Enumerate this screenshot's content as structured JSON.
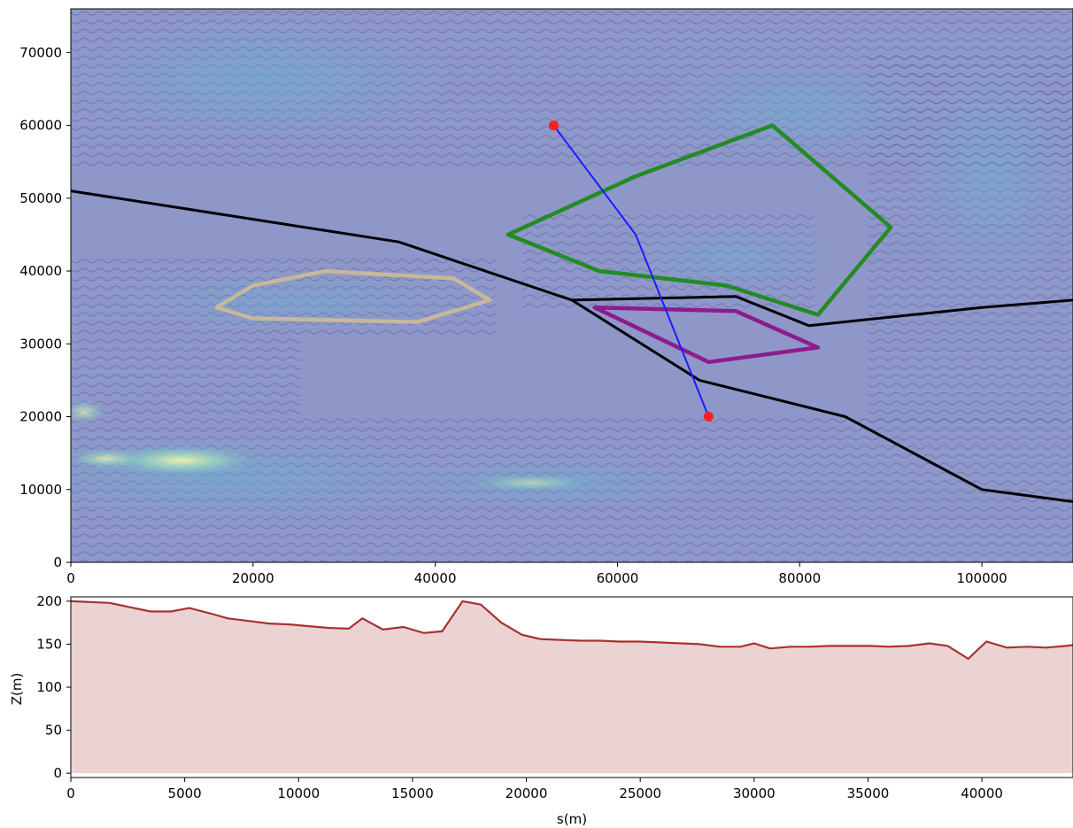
{
  "chart_data": [
    {
      "type": "contour_map",
      "xlim": [
        0,
        110000
      ],
      "ylim": [
        0,
        76000
      ],
      "xticks": [
        0,
        20000,
        40000,
        60000,
        80000,
        100000
      ],
      "yticks": [
        0,
        10000,
        20000,
        30000,
        40000,
        50000,
        60000,
        70000
      ],
      "xtick_labels": [
        "0",
        "20000",
        "40000",
        "60000",
        "80000",
        "100000"
      ],
      "ytick_labels": [
        "0",
        "10000",
        "20000",
        "30000",
        "40000",
        "50000",
        "60000",
        "70000"
      ],
      "background_color": "#8f96c8",
      "polylines": [
        {
          "name": "black-line-upper",
          "color": "#000000",
          "closed": false,
          "points": [
            [
              0,
              51000
            ],
            [
              18000,
              47500
            ],
            [
              36000,
              44000
            ],
            [
              55000,
              36000
            ],
            [
              73000,
              36500
            ],
            [
              81000,
              32500
            ],
            [
              100000,
              35000
            ],
            [
              110000,
              36000
            ],
            [
              112000,
              37000
            ]
          ]
        },
        {
          "name": "black-line-lower",
          "color": "#000000",
          "closed": false,
          "points": [
            [
              55000,
              36000
            ],
            [
              69000,
              25000
            ],
            [
              85000,
              20000
            ],
            [
              100000,
              10000
            ],
            [
              112000,
              8000
            ]
          ]
        },
        {
          "name": "green-polygon",
          "color": "#228b22",
          "closed": true,
          "points": [
            [
              48000,
              45000
            ],
            [
              62000,
              53000
            ],
            [
              77000,
              60000
            ],
            [
              90000,
              46000
            ],
            [
              82000,
              34000
            ],
            [
              72000,
              38000
            ],
            [
              58000,
              40000
            ]
          ]
        },
        {
          "name": "purple-polygon",
          "color": "#8b1c8b",
          "closed": true,
          "points": [
            [
              57500,
              35000
            ],
            [
              73000,
              34500
            ],
            [
              82000,
              29500
            ],
            [
              70000,
              27500
            ]
          ]
        },
        {
          "name": "tan-polygon",
          "color": "#c8b89a",
          "closed": true,
          "points": [
            [
              16000,
              35000
            ],
            [
              20000,
              38000
            ],
            [
              28000,
              40000
            ],
            [
              42000,
              39000
            ],
            [
              46000,
              36000
            ],
            [
              38000,
              33000
            ],
            [
              20000,
              33500
            ]
          ]
        },
        {
          "name": "blue-profile-line",
          "color": "#1c1cff",
          "closed": false,
          "points": [
            [
              53000,
              60000
            ],
            [
              62000,
              45000
            ],
            [
              70000,
              20000
            ]
          ]
        }
      ],
      "points": [
        {
          "name": "profile-start",
          "x": 53000,
          "y": 60000,
          "color": "#ff2020"
        },
        {
          "name": "profile-end",
          "x": 70000,
          "y": 20000,
          "color": "#ff2020"
        }
      ]
    },
    {
      "type": "area",
      "xlabel": "s(m)",
      "ylabel": "Z(m)",
      "xlim": [
        0,
        44000
      ],
      "ylim": [
        -5,
        205
      ],
      "xticks": [
        0,
        5000,
        10000,
        15000,
        20000,
        25000,
        30000,
        35000,
        40000
      ],
      "yticks": [
        0,
        50,
        100,
        150,
        200
      ],
      "xtick_labels": [
        "0",
        "5000",
        "10000",
        "15000",
        "20000",
        "25000",
        "30000",
        "35000",
        "40000"
      ],
      "ytick_labels": [
        "0",
        "50",
        "100",
        "150",
        "200"
      ],
      "line_color": "#a83232",
      "fill_color": "#ecd3d3",
      "x": [
        0,
        1700,
        2600,
        3500,
        4400,
        5200,
        6100,
        6900,
        7800,
        8700,
        9600,
        10400,
        11300,
        12200,
        12800,
        13700,
        14600,
        15500,
        16300,
        17200,
        18000,
        18900,
        19800,
        20600,
        21500,
        22400,
        23200,
        24100,
        25000,
        25900,
        26800,
        27600,
        28500,
        29400,
        30000,
        30700,
        31600,
        32500,
        33300,
        34200,
        35100,
        35900,
        36800,
        37700,
        38500,
        39400,
        40200,
        41100,
        42000,
        42800,
        43700,
        44000
      ],
      "y": [
        200,
        198,
        193,
        188,
        188,
        192,
        186,
        180,
        177,
        174,
        173,
        171,
        169,
        168,
        180,
        167,
        170,
        163,
        165,
        200,
        196,
        175,
        161,
        156,
        155,
        154,
        154,
        153,
        153,
        152,
        151,
        150,
        147,
        147,
        151,
        145,
        147,
        147,
        148,
        148,
        148,
        147,
        148,
        151,
        148,
        133,
        153,
        146,
        147,
        146,
        148,
        149
      ]
    }
  ]
}
